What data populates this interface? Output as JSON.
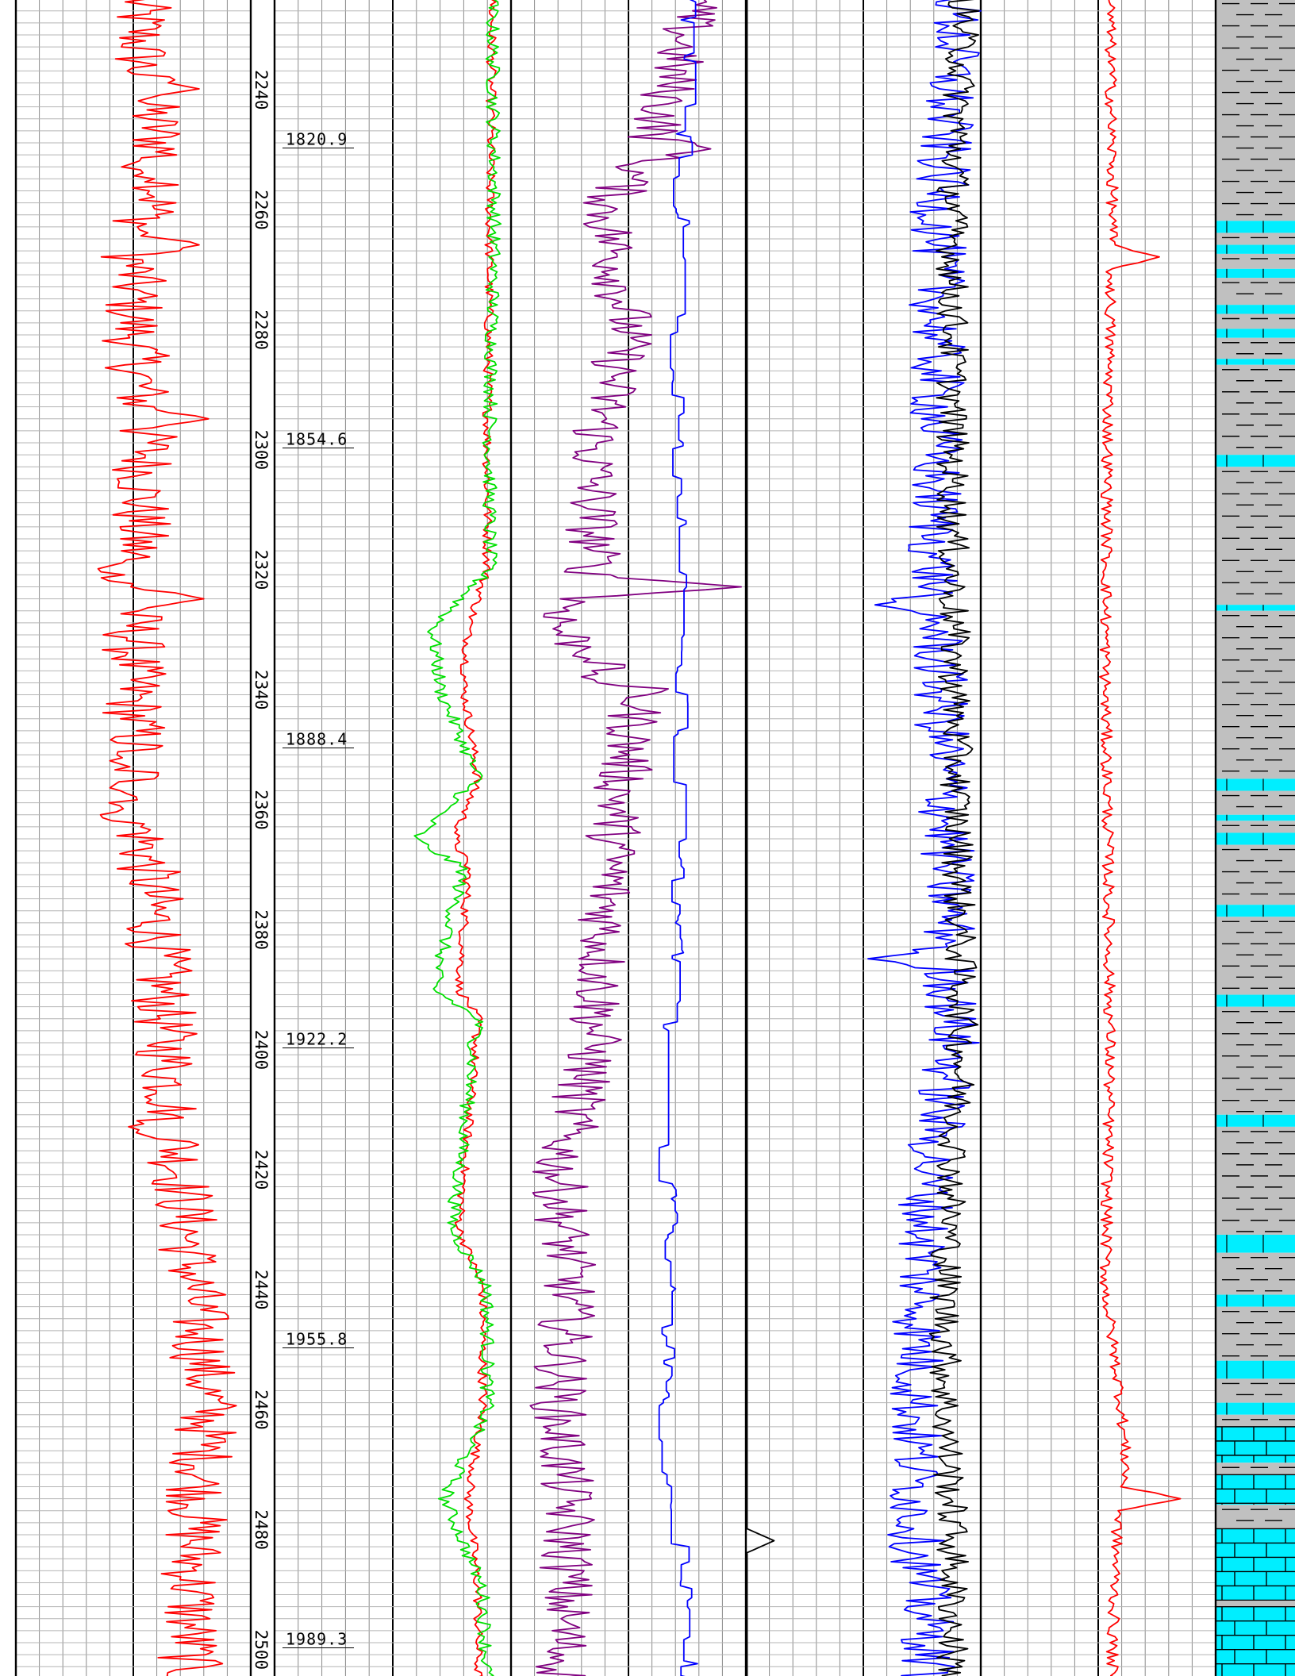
{
  "colors": {
    "grid_major": "#000000",
    "grid_minor": "#8a8a8a",
    "grid_fine": "#b4b4b4",
    "gr": "#ff0000",
    "res_deep": "#ff0000",
    "res_shallow": "#00e000",
    "density": "#800080",
    "neutron": "#0000ff",
    "pe": "#000000",
    "sonic_a": "#000000",
    "sonic_b": "#0000ff",
    "sp": "#ff0000",
    "lith_shale": "#c0c0c0",
    "lith_sand": "#00eeff"
  },
  "chart_data": {
    "type": "line",
    "depth_unit": "m",
    "depth_range": [
      2225,
      2505
    ],
    "depth_ticks": [
      "2240",
      "2260",
      "2280",
      "2300",
      "2320",
      "2340",
      "2360",
      "2380",
      "2400",
      "2420",
      "2440",
      "2460",
      "2480",
      "2500"
    ],
    "tvd_labels": [
      {
        "depth": 2248,
        "text": "1820.9"
      },
      {
        "depth": 2298,
        "text": "1854.6"
      },
      {
        "depth": 2348,
        "text": "1888.4"
      },
      {
        "depth": 2398,
        "text": "1922.2"
      },
      {
        "depth": 2448,
        "text": "1955.8"
      },
      {
        "depth": 2498,
        "text": "1989.3"
      }
    ],
    "tracks": [
      {
        "name": "track1",
        "curves": [
          {
            "key": "gr",
            "color": "#ff0000",
            "base": 0.54,
            "amp": 0.14,
            "knots": [
              [
                2225,
                0.52
              ],
              [
                2240,
                0.54
              ],
              [
                2255,
                0.66
              ],
              [
                2265,
                0.5
              ],
              [
                2280,
                0.5
              ],
              [
                2300,
                0.56
              ],
              [
                2320,
                0.5
              ],
              [
                2340,
                0.5
              ],
              [
                2360,
                0.52
              ],
              [
                2380,
                0.6
              ],
              [
                2400,
                0.64
              ],
              [
                2420,
                0.7
              ],
              [
                2440,
                0.76
              ],
              [
                2460,
                0.82
              ],
              [
                2480,
                0.76
              ],
              [
                2500,
                0.74
              ]
            ],
            "spikes": [
              [
                2240,
                0.78
              ],
              [
                2253,
                0.45
              ],
              [
                2266,
                0.78
              ],
              [
                2295,
                0.82
              ],
              [
                2320,
                0.35
              ],
              [
                2325,
                0.8
              ],
              [
                2352,
                0.4
              ],
              [
                2361,
                0.36
              ],
              [
                2413,
                0.48
              ]
            ]
          }
        ]
      },
      {
        "name": "track3",
        "curves": [
          {
            "key": "res_deep",
            "color": "#ff0000",
            "base": 0.85,
            "amp": 0.02,
            "knots": [
              [
                2225,
                0.92
              ],
              [
                2260,
                0.91
              ],
              [
                2300,
                0.9
              ],
              [
                2320,
                0.9
              ],
              [
                2330,
                0.82
              ],
              [
                2340,
                0.8
              ],
              [
                2355,
                0.86
              ],
              [
                2365,
                0.76
              ],
              [
                2370,
                0.82
              ],
              [
                2390,
                0.78
              ],
              [
                2395,
                0.86
              ],
              [
                2430,
                0.78
              ],
              [
                2440,
                0.88
              ],
              [
                2460,
                0.88
              ],
              [
                2475,
                0.82
              ],
              [
                2490,
                0.86
              ],
              [
                2505,
                0.86
              ]
            ],
            "spikes": []
          },
          {
            "key": "res_shallow",
            "color": "#00e000",
            "base": 0.85,
            "amp": 0.03,
            "knots": [
              [
                2225,
                0.92
              ],
              [
                2260,
                0.93
              ],
              [
                2300,
                0.91
              ],
              [
                2320,
                0.91
              ],
              [
                2330,
                0.67
              ],
              [
                2340,
                0.7
              ],
              [
                2355,
                0.86
              ],
              [
                2365,
                0.59
              ],
              [
                2370,
                0.8
              ],
              [
                2390,
                0.67
              ],
              [
                2395,
                0.86
              ],
              [
                2430,
                0.75
              ],
              [
                2440,
                0.9
              ],
              [
                2460,
                0.9
              ],
              [
                2475,
                0.72
              ],
              [
                2490,
                0.88
              ],
              [
                2505,
                0.9
              ]
            ],
            "spikes": []
          }
        ]
      },
      {
        "name": "track4",
        "curves": [
          {
            "key": "density",
            "color": "#800080",
            "base": 0.5,
            "amp": 0.12,
            "knots": [
              [
                2225,
                0.78
              ],
              [
                2250,
                0.6
              ],
              [
                2260,
                0.4
              ],
              [
                2280,
                0.5
              ],
              [
                2300,
                0.35
              ],
              [
                2320,
                0.35
              ],
              [
                2330,
                0.2
              ],
              [
                2340,
                0.55
              ],
              [
                2360,
                0.45
              ],
              [
                2380,
                0.4
              ],
              [
                2400,
                0.35
              ],
              [
                2420,
                0.2
              ],
              [
                2440,
                0.25
              ],
              [
                2460,
                0.2
              ],
              [
                2480,
                0.25
              ],
              [
                2500,
                0.22
              ]
            ],
            "spikes": [
              [
                2250,
                0.85
              ],
              [
                2323,
                0.98
              ],
              [
                2338,
                0.3
              ]
            ]
          },
          {
            "key": "neutron",
            "color": "#0000ff",
            "base": 0.74,
            "amp": 0.04,
            "stepped": true,
            "knots": [
              [
                2225,
                0.76
              ],
              [
                2260,
                0.72
              ],
              [
                2300,
                0.7
              ],
              [
                2320,
                0.72
              ],
              [
                2340,
                0.72
              ],
              [
                2360,
                0.75
              ],
              [
                2380,
                0.7
              ],
              [
                2400,
                0.68
              ],
              [
                2420,
                0.66
              ],
              [
                2440,
                0.7
              ],
              [
                2460,
                0.64
              ],
              [
                2480,
                0.72
              ],
              [
                2500,
                0.76
              ]
            ],
            "spikes": []
          }
        ]
      },
      {
        "name": "track5",
        "curves": [
          {
            "key": "pe",
            "color": "#000000",
            "base": 0.005,
            "amp": 0.03,
            "sparse": true,
            "knots": [
              [
                2225,
                0.005
              ],
              [
                2505,
                0.005
              ]
            ],
            "spikes": [
              [
                2482,
                0.12
              ]
            ]
          }
        ]
      },
      {
        "name": "track6",
        "curves": [
          {
            "key": "sonic_b",
            "color": "#0000ff",
            "base": 0.88,
            "amp": 0.12,
            "knots": [
              [
                2225,
                0.9
              ],
              [
                2260,
                0.82
              ],
              [
                2320,
                0.8
              ],
              [
                2360,
                0.85
              ],
              [
                2400,
                0.88
              ],
              [
                2420,
                0.78
              ],
              [
                2440,
                0.75
              ],
              [
                2460,
                0.72
              ],
              [
                2480,
                0.72
              ],
              [
                2500,
                0.78
              ]
            ],
            "spikes": [
              [
                2326,
                0.55
              ],
              [
                2385,
                0.52
              ]
            ]
          },
          {
            "key": "sonic_a",
            "color": "#000000",
            "base": 0.92,
            "amp": 0.07,
            "knots": [
              [
                2225,
                0.93
              ],
              [
                2260,
                0.88
              ],
              [
                2320,
                0.88
              ],
              [
                2360,
                0.9
              ],
              [
                2400,
                0.92
              ],
              [
                2420,
                0.88
              ],
              [
                2440,
                0.85
              ],
              [
                2460,
                0.85
              ],
              [
                2480,
                0.88
              ],
              [
                2500,
                0.88
              ]
            ],
            "spikes": []
          }
        ]
      },
      {
        "name": "track7",
        "curves": [
          {
            "key": "sp",
            "color": "#ff0000",
            "base": 0.55,
            "amp": 0.025,
            "knots": [
              [
                2225,
                0.55
              ],
              [
                2260,
                0.56
              ],
              [
                2300,
                0.54
              ],
              [
                2340,
                0.53
              ],
              [
                2360,
                0.54
              ],
              [
                2400,
                0.55
              ],
              [
                2440,
                0.53
              ],
              [
                2460,
                0.6
              ],
              [
                2470,
                0.62
              ],
              [
                2480,
                0.58
              ],
              [
                2500,
                0.56
              ]
            ],
            "spikes": [
              [
                2268,
                0.76
              ],
              [
                2475,
                0.85
              ]
            ]
          }
        ]
      }
    ],
    "lithology": [
      [
        2225,
        2262,
        "shale"
      ],
      [
        2262,
        2264,
        "sand"
      ],
      [
        2264,
        2266,
        "shale"
      ],
      [
        2266,
        2267.5,
        "sand"
      ],
      [
        2267.5,
        2270,
        "shale"
      ],
      [
        2270,
        2271.5,
        "sand"
      ],
      [
        2271.5,
        2276,
        "shale"
      ],
      [
        2276,
        2277.5,
        "sand"
      ],
      [
        2277.5,
        2280,
        "shale"
      ],
      [
        2280,
        2281.5,
        "sand"
      ],
      [
        2281.5,
        2285,
        "shale"
      ],
      [
        2285,
        2286,
        "sand"
      ],
      [
        2286,
        2301,
        "shale"
      ],
      [
        2301,
        2303,
        "sand"
      ],
      [
        2303,
        2326,
        "shale"
      ],
      [
        2326,
        2327,
        "sand"
      ],
      [
        2327,
        2355,
        "shale"
      ],
      [
        2355,
        2357,
        "sand"
      ],
      [
        2357,
        2361,
        "shale"
      ],
      [
        2361,
        2362,
        "sand"
      ],
      [
        2362,
        2364,
        "shale"
      ],
      [
        2364,
        2366,
        "sand"
      ],
      [
        2366,
        2376,
        "shale"
      ],
      [
        2376,
        2378,
        "sand"
      ],
      [
        2378,
        2391,
        "shale"
      ],
      [
        2391,
        2393,
        "sand"
      ],
      [
        2393,
        2411,
        "shale"
      ],
      [
        2411,
        2413,
        "sand"
      ],
      [
        2413,
        2431,
        "shale"
      ],
      [
        2431,
        2434,
        "sand"
      ],
      [
        2434,
        2441,
        "shale"
      ],
      [
        2441,
        2443,
        "sand"
      ],
      [
        2443,
        2452,
        "shale"
      ],
      [
        2452,
        2455,
        "sand"
      ],
      [
        2455,
        2459,
        "shale"
      ],
      [
        2459,
        2461,
        "sand"
      ],
      [
        2461,
        2463,
        "shale"
      ],
      [
        2463,
        2469,
        "limestone"
      ],
      [
        2469,
        2471,
        "shale"
      ],
      [
        2471,
        2476,
        "limestone"
      ],
      [
        2476,
        2480,
        "shale"
      ],
      [
        2480,
        2492,
        "limestone"
      ],
      [
        2492,
        2493,
        "shale"
      ],
      [
        2493,
        2505,
        "limestone"
      ]
    ]
  }
}
